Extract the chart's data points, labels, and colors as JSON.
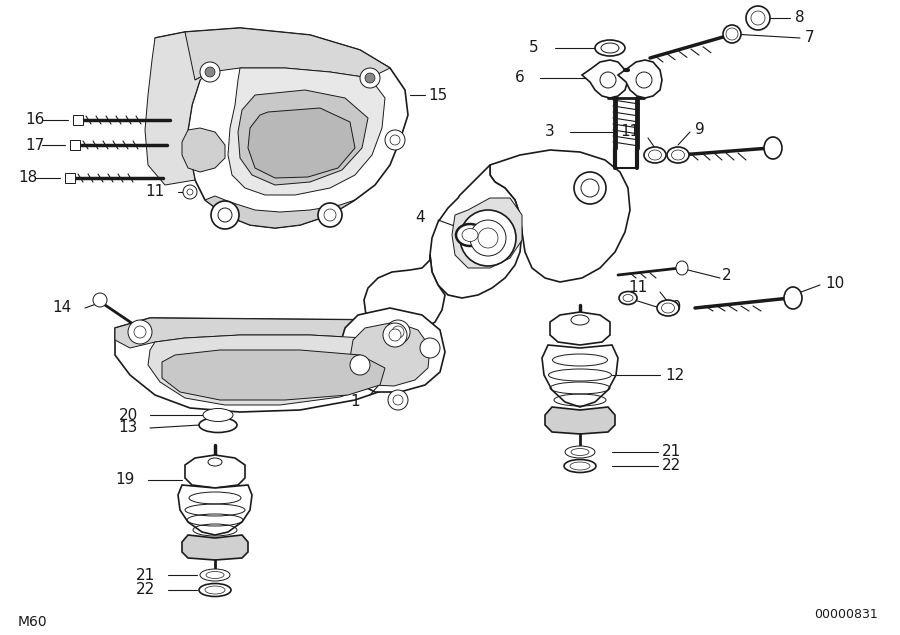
{
  "background_color": "#ffffff",
  "line_color": "#1a1a1a",
  "fig_width": 9.0,
  "fig_height": 6.35,
  "dpi": 100,
  "bottom_left_label": "M60",
  "bottom_right_label": "00000831",
  "font_size_labels": 11,
  "font_size_corner": 9,
  "font_size_corner_left": 10
}
